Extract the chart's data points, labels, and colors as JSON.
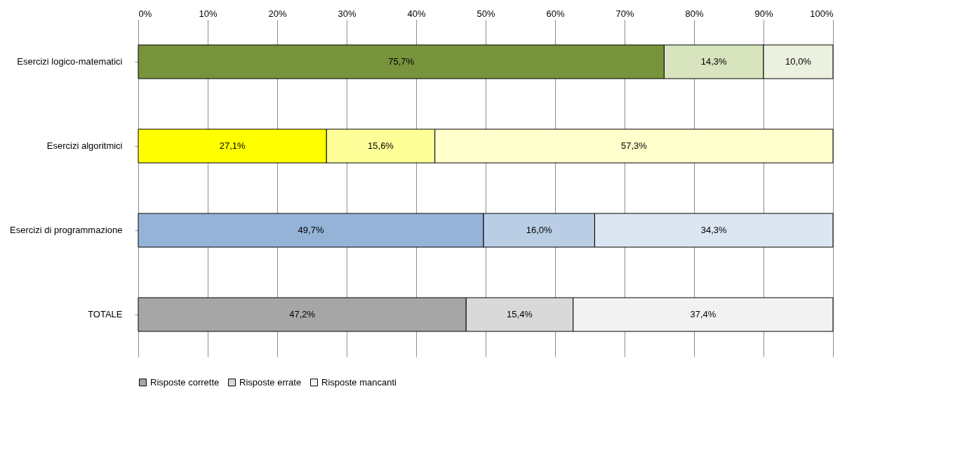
{
  "chart_data": {
    "type": "bar",
    "orientation": "horizontal",
    "stacked": true,
    "categories": [
      "Esercizi logico-matematici",
      "Esercizi algoritmici",
      "Esercizi di programmazione",
      "TOTALE"
    ],
    "series": [
      {
        "name": "Risposte corrette",
        "color": "#a6a6a6",
        "colors": [
          "#77933c",
          "#ffff00",
          "#95b3d7",
          "#a6a6a6"
        ],
        "values": [
          75.7,
          27.1,
          49.7,
          47.2
        ],
        "value_labels": [
          "75,7%",
          "27,1%",
          "49,7%",
          "47,2%"
        ]
      },
      {
        "name": "Risposte errate",
        "color": "#d9d9d9",
        "colors": [
          "#d7e4bd",
          "#ffff99",
          "#b9cde5",
          "#d9d9d9"
        ],
        "values": [
          14.3,
          15.6,
          16.0,
          15.4
        ],
        "value_labels": [
          "14,3%",
          "15,6%",
          "16,0%",
          "15,4%"
        ]
      },
      {
        "name": "Risposte mancanti",
        "color": "#f2f2f2",
        "colors": [
          "#ebf1de",
          "#ffffcc",
          "#dce6f2",
          "#f2f2f2"
        ],
        "values": [
          10.0,
          57.3,
          34.3,
          37.4
        ],
        "value_labels": [
          "10,0%",
          "57,3%",
          "34,3%",
          "37,4%"
        ]
      }
    ],
    "xlim": [
      0,
      100
    ],
    "xticks": [
      {
        "value": 0,
        "label": "0%"
      },
      {
        "value": 10,
        "label": "10%"
      },
      {
        "value": 20,
        "label": "20%"
      },
      {
        "value": 30,
        "label": "30%"
      },
      {
        "value": 40,
        "label": "40%"
      },
      {
        "value": 50,
        "label": "50%"
      },
      {
        "value": 60,
        "label": "60%"
      },
      {
        "value": 70,
        "label": "70%"
      },
      {
        "value": 80,
        "label": "80%"
      },
      {
        "value": 90,
        "label": "90%"
      },
      {
        "value": 100,
        "label": "100%"
      }
    ],
    "grid": "x",
    "legend": "bottom"
  }
}
